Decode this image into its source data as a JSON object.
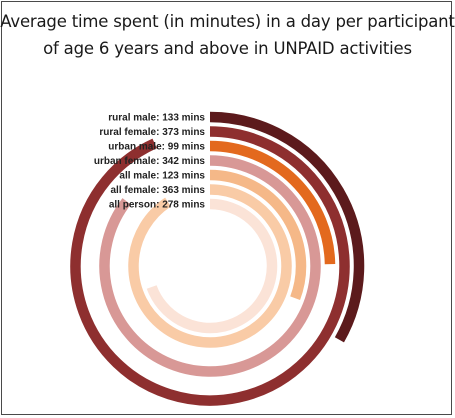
{
  "title_lines": [
    "Average time spent (in minutes) in a day per participant",
    "of age 6 years and above in UNPAID activities"
  ],
  "chart_data": {
    "type": "radial-bar",
    "title": "Average time spent (in minutes) in a day per participant of age 6 years and above in UNPAID activities",
    "unit": "mins",
    "categories": [
      "rural male",
      "rural female",
      "urban male",
      "urban female",
      "all male",
      "all female",
      "all person"
    ],
    "values": [
      133,
      373,
      99,
      342,
      123,
      363,
      278
    ],
    "labels": [
      "rural male: 133 mins",
      "rural female: 373 mins",
      "urban male: 99 mins",
      "urban female: 342 mins",
      "all male: 123 mins",
      "all female: 363 mins",
      "all person: 278 mins"
    ],
    "colors": [
      "#5c1a1c",
      "#8e2f2f",
      "#e3691e",
      "#d89896",
      "#f5b888",
      "#f9cba6",
      "#fbe3d7"
    ]
  }
}
